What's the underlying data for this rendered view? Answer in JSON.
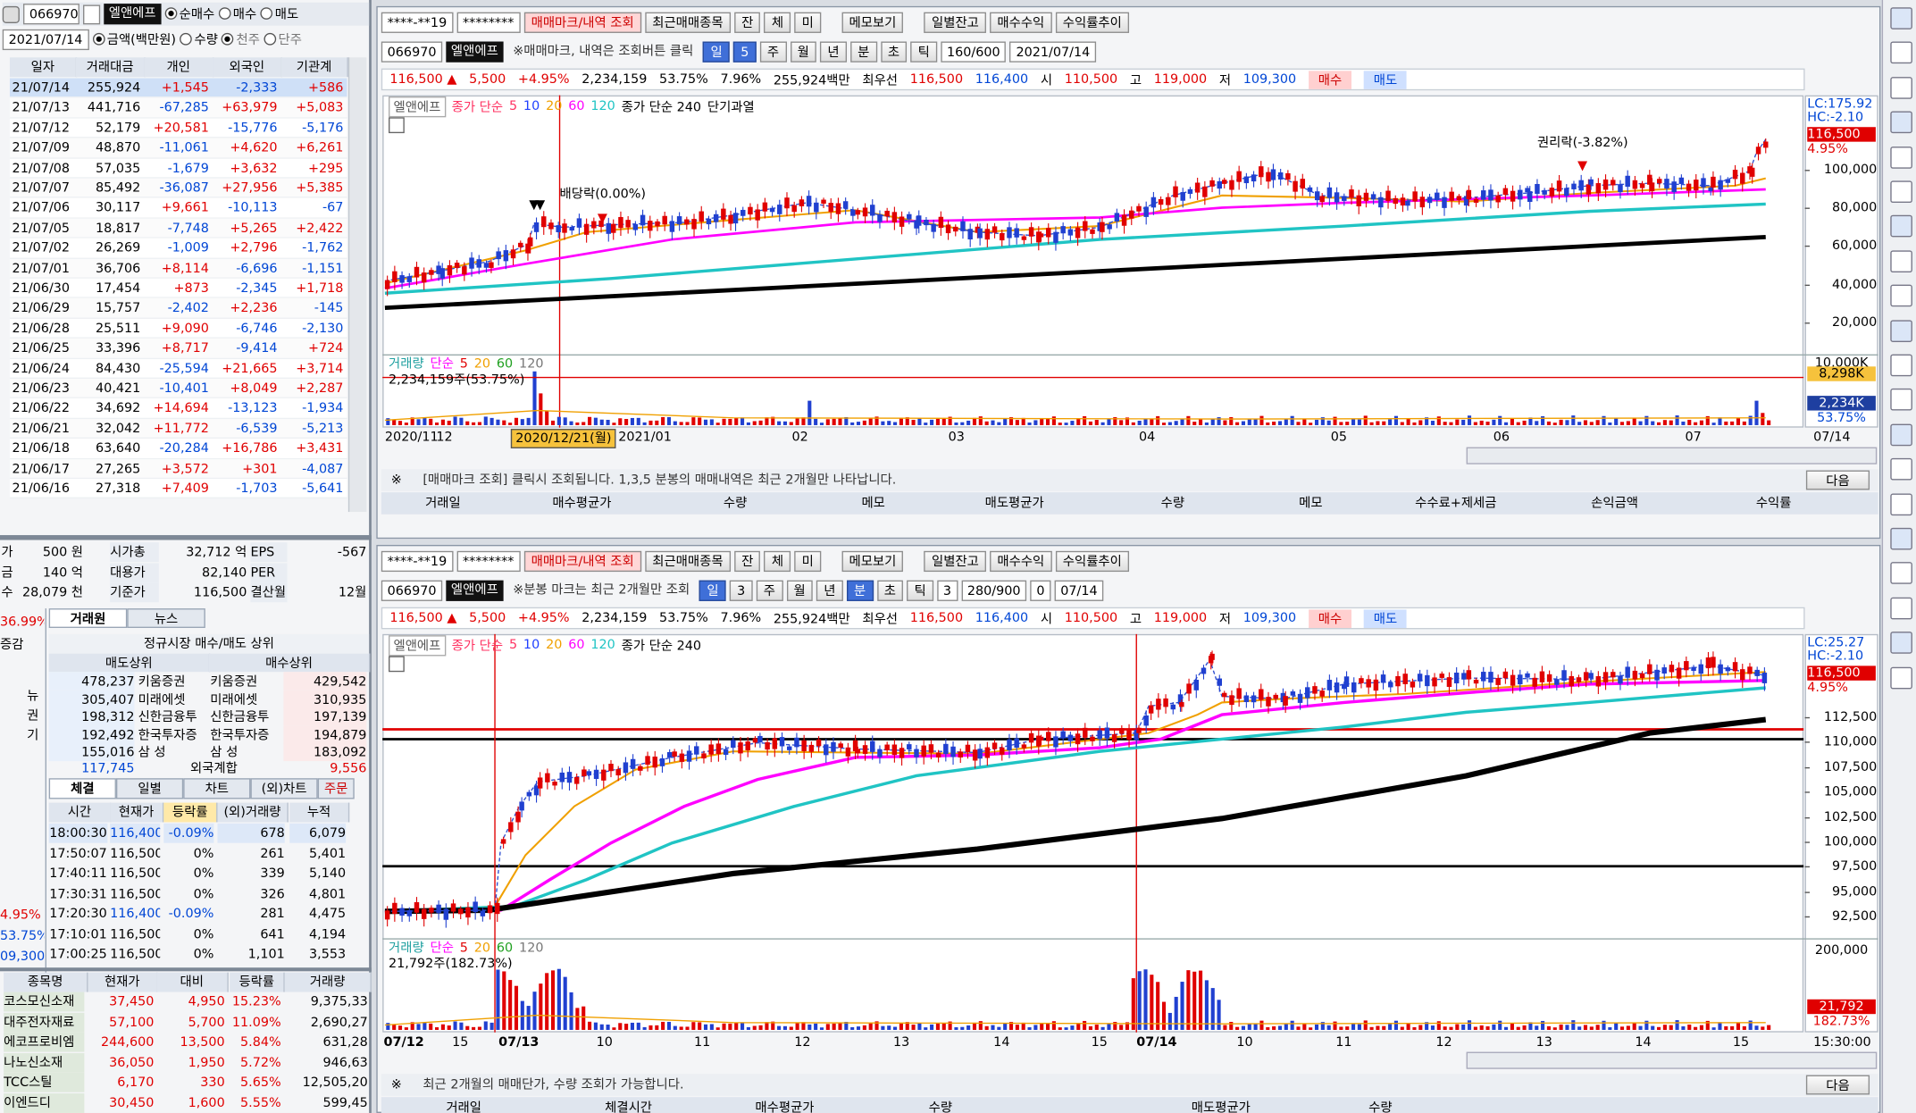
{
  "left_panel": {
    "toolbar": {
      "code": "066970",
      "name": "엘앤에프",
      "options": [
        "순매수",
        "매수",
        "매도"
      ],
      "date": "2021/07/14",
      "units": [
        "금액(백만원)",
        "수량"
      ],
      "share_units": [
        "천주",
        "단주"
      ]
    },
    "investor_table": {
      "columns": [
        "일자",
        "거래대금",
        "개인",
        "외국인",
        "기관계"
      ],
      "rows": [
        [
          "21/07/14",
          "255,924",
          "+1,545",
          "-2,333",
          "+586"
        ],
        [
          "21/07/13",
          "441,716",
          "-67,285",
          "+63,979",
          "+5,083"
        ],
        [
          "21/07/12",
          "52,179",
          "+20,581",
          "-15,776",
          "-5,176"
        ],
        [
          "21/07/09",
          "48,870",
          "-11,061",
          "+4,620",
          "+6,261"
        ],
        [
          "21/07/08",
          "57,035",
          "-1,679",
          "+3,632",
          "+295"
        ],
        [
          "21/07/07",
          "85,492",
          "-36,087",
          "+27,956",
          "+5,385"
        ],
        [
          "21/07/06",
          "30,117",
          "+9,661",
          "-10,113",
          "-67"
        ],
        [
          "21/07/05",
          "18,817",
          "-7,748",
          "+5,265",
          "+2,422"
        ],
        [
          "21/07/02",
          "26,269",
          "-1,009",
          "+2,796",
          "-1,762"
        ],
        [
          "21/07/01",
          "36,706",
          "+8,114",
          "-6,696",
          "-1,151"
        ],
        [
          "21/06/30",
          "17,454",
          "+873",
          "-2,345",
          "+1,718"
        ],
        [
          "21/06/29",
          "15,757",
          "-2,402",
          "+2,236",
          "-145"
        ],
        [
          "21/06/28",
          "25,511",
          "+9,090",
          "-6,746",
          "-2,130"
        ],
        [
          "21/06/25",
          "33,396",
          "+8,717",
          "-9,414",
          "+724"
        ],
        [
          "21/06/24",
          "84,430",
          "-25,594",
          "+21,665",
          "+3,714"
        ],
        [
          "21/06/23",
          "40,421",
          "-10,401",
          "+8,049",
          "+2,287"
        ],
        [
          "21/06/22",
          "34,692",
          "+14,694",
          "-13,123",
          "-1,934"
        ],
        [
          "21/06/21",
          "32,042",
          "+11,772",
          "-6,539",
          "-5,213"
        ],
        [
          "21/06/18",
          "63,640",
          "-20,284",
          "+16,786",
          "+3,431"
        ],
        [
          "21/06/17",
          "27,265",
          "+3,572",
          "+301",
          "-4,087"
        ],
        [
          "21/06/16",
          "27,318",
          "+7,409",
          "-1,703",
          "-5,641"
        ]
      ]
    },
    "summary": [
      [
        "가",
        "500 원",
        "시가총",
        "32,712 억",
        "EPS",
        "-567"
      ],
      [
        "금",
        "140 억",
        "대용가",
        "82,140",
        "PER"
      ],
      [
        "수",
        "28,079 천",
        "기준가",
        "116,500",
        "결산월",
        "12월"
      ]
    ],
    "side_fragments": [
      "36.99%",
      "증감",
      "뉴",
      "권",
      "기",
      "4.95%",
      "53.75%",
      "09,300"
    ],
    "broker_tabs": [
      "거래원",
      "뉴스"
    ],
    "broker": {
      "title": "정규시장 매수/매도 상위",
      "columns": [
        "매도상위",
        "매수상위"
      ],
      "rows": [
        [
          "478,237",
          "키움증권",
          "키움증권",
          "429,542"
        ],
        [
          "305,407",
          "미래에셋",
          "미래에셋",
          "310,935"
        ],
        [
          "198,312",
          "신한금융투",
          "신한금융투",
          "197,139"
        ],
        [
          "192,492",
          "한국투자증",
          "한국투자증",
          "194,879"
        ],
        [
          "155,016",
          "삼 성",
          "삼 성",
          "183,092"
        ]
      ],
      "total": [
        "117,745",
        "외국계합",
        "9,556"
      ]
    },
    "trade_tabs": [
      "체결",
      "일별",
      "차트",
      "(외)차트",
      "주문"
    ],
    "trades": {
      "columns": [
        "시간",
        "현재가",
        "등락률",
        "(외)거래량",
        "누적"
      ],
      "rows": [
        [
          "18:00:30",
          "116,400",
          "-0.09%",
          "678",
          "6,079"
        ],
        [
          "17:50:07",
          "116,500",
          "0%",
          "261",
          "5,401"
        ],
        [
          "17:40:11",
          "116,500",
          "0%",
          "339",
          "5,140"
        ],
        [
          "17:30:31",
          "116,500",
          "0%",
          "326",
          "4,801"
        ],
        [
          "17:20:30",
          "116,400",
          "-0.09%",
          "281",
          "4,475"
        ],
        [
          "17:10:01",
          "116,500",
          "0%",
          "641",
          "4,194"
        ],
        [
          "17:00:25",
          "116,500",
          "0%",
          "1,101",
          "3,553"
        ]
      ]
    },
    "watchlist": {
      "columns": [
        "종목명",
        "현재가",
        "대비",
        "등락률",
        "거래량"
      ],
      "rows": [
        [
          "코스모신소재",
          "37,450",
          "4,950",
          "15.23%",
          "9,375,33"
        ],
        [
          "대주전자재료",
          "57,100",
          "5,700",
          "11.09%",
          "2,690,27"
        ],
        [
          "에코프로비엠",
          "244,600",
          "13,500",
          "5.84%",
          "631,28"
        ],
        [
          "나노신소재",
          "36,050",
          "1,950",
          "5.72%",
          "946,63"
        ],
        [
          "TCC스틸",
          "6,170",
          "330",
          "5.65%",
          "12,505,20"
        ],
        [
          "이엔드디",
          "30,450",
          "1,600",
          "5.55%",
          "599,45"
        ]
      ]
    }
  },
  "chart_windows": [
    {
      "toolbar1": [
        "****-**19",
        "********",
        "매매마크/내역 조회",
        "최근매매종목",
        "잔",
        "체",
        "미",
        "메모보기",
        "일별잔고",
        "매수수익",
        "수익률추이"
      ],
      "toolbar2": [
        "066970",
        "엘앤에프",
        "※매매마크, 내역은 조회버튼 클릭",
        "일",
        "5",
        "주",
        "월",
        "년",
        "분",
        "초",
        "틱",
        "160/600",
        "2021/07/14"
      ],
      "quote": [
        "116,500 ▲",
        "5,500",
        "+4.95%",
        "2,234,159",
        "53.75%",
        "7.96%",
        "255,924백만",
        "최우선",
        "116,500",
        "116,400",
        "시",
        "110,500",
        "고",
        "119,000",
        "저",
        "109,300",
        "매수",
        "매도"
      ],
      "legend": [
        "엘앤에프",
        "종가 단순",
        "5",
        "10",
        "20",
        "60",
        "120",
        "종가 단순 240",
        "단기과열"
      ],
      "annotations": [
        "배당락(0.00%)",
        "권리락(-3.82%)"
      ],
      "price_axis": [
        "100,000",
        "80,000",
        "60,000",
        "40,000",
        "20,000"
      ],
      "right_labels": [
        "LC:175.92",
        "HC:-2.10",
        "116,500",
        "4.95%"
      ],
      "volume_legend": [
        "거래량",
        "단순",
        "5",
        "20",
        "60",
        "120",
        "2,234,159주(53.75%)"
      ],
      "volume_axis": [
        "10,000K",
        "8,298K",
        "2,234K",
        "53.75%"
      ],
      "x_labels": [
        "2020/11",
        "12",
        "2020/12/21(월)",
        "2021/01",
        "02",
        "03",
        "04",
        "05",
        "06",
        "07",
        "07/14"
      ],
      "info": [
        "※",
        "[매매마크 조회] 클릭시 조회됩니다. 1,3,5 분봉의 매매내역은 최근 2개월만 나타납니다.",
        "다음"
      ],
      "columns": [
        "거래일",
        "매수평균가",
        "수량",
        "메모",
        "매도평균가",
        "수량",
        "메모",
        "수수료+제세금",
        "손익금액",
        "수익률"
      ]
    },
    {
      "toolbar1": [
        "****-**19",
        "********",
        "매매마크/내역 조회",
        "최근매매종목",
        "잔",
        "체",
        "미",
        "메모보기",
        "일별잔고",
        "매수수익",
        "수익률추이"
      ],
      "toolbar2": [
        "066970",
        "엘앤에프",
        "※분봉 마크는 최근 2개월만 조회",
        "일",
        "3",
        "주",
        "월",
        "년",
        "분",
        "초",
        "틱",
        "3",
        "280/900",
        "0",
        "07/14"
      ],
      "quote": [
        "116,500 ▲",
        "5,500",
        "+4.95%",
        "2,234,159",
        "53.75%",
        "7.96%",
        "255,924백만",
        "최우선",
        "116,500",
        "116,400",
        "시",
        "110,500",
        "고",
        "119,000",
        "저",
        "109,300",
        "매수",
        "매도"
      ],
      "legend": [
        "엘앤에프",
        "종가 단순",
        "5",
        "10",
        "20",
        "60",
        "120",
        "종가 단순 240"
      ],
      "price_axis": [
        "112,500",
        "110,000",
        "107,500",
        "105,000",
        "102,500",
        "100,000",
        "97,500",
        "95,000",
        "92,500"
      ],
      "right_labels": [
        "LC:25.27",
        "HC:-2.10",
        "116,500",
        "4.95%"
      ],
      "volume_legend": [
        "거래량",
        "단순",
        "5",
        "20",
        "60",
        "120",
        "21,792주(182.73%)"
      ],
      "volume_axis": [
        "200,000",
        "21,792",
        "182.73%"
      ],
      "x_labels": [
        "07/12",
        "15",
        "07/13",
        "10",
        "11",
        "12",
        "13",
        "14",
        "15",
        "07/14",
        "10",
        "11",
        "12",
        "13",
        "14",
        "15",
        "15:30:00"
      ],
      "info": [
        "※",
        "최근 2개월의 매매단가, 수량 조회가 가능합니다.",
        "다음"
      ],
      "columns": [
        "거래일",
        "체결시간",
        "매수평균가",
        "수량",
        "매도평균가",
        "수량"
      ]
    }
  ]
}
